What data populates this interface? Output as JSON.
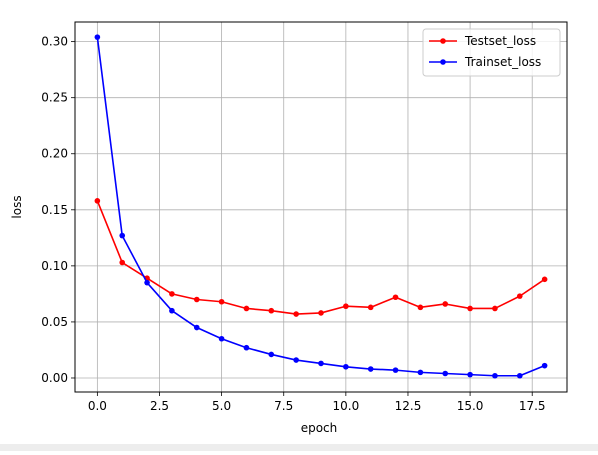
{
  "chart_data": {
    "type": "line",
    "title": "",
    "xlabel": "epoch",
    "ylabel": "loss",
    "xlim": [
      -0.9,
      18.9
    ],
    "ylim": [
      -0.0125,
      0.3175
    ],
    "xticks": [
      0.0,
      2.5,
      5.0,
      7.5,
      10.0,
      12.5,
      15.0,
      17.5
    ],
    "xtick_labels": [
      "0.0",
      "2.5",
      "5.0",
      "7.5",
      "10.0",
      "12.5",
      "15.0",
      "17.5"
    ],
    "yticks": [
      0.0,
      0.05,
      0.1,
      0.15,
      0.2,
      0.25,
      0.3
    ],
    "ytick_labels": [
      "0.00",
      "0.05",
      "0.10",
      "0.15",
      "0.20",
      "0.25",
      "0.30"
    ],
    "grid": true,
    "legend_position": "top-right",
    "x": [
      0,
      1,
      2,
      3,
      4,
      5,
      6,
      7,
      8,
      9,
      10,
      11,
      12,
      13,
      14,
      15,
      16,
      17,
      18
    ],
    "series": [
      {
        "name": "Testset_loss",
        "color": "#ff0000",
        "marker": "dot",
        "values": [
          0.158,
          0.103,
          0.089,
          0.075,
          0.07,
          0.068,
          0.062,
          0.06,
          0.057,
          0.058,
          0.064,
          0.063,
          0.072,
          0.063,
          0.066,
          0.062,
          0.062,
          0.073,
          0.088
        ]
      },
      {
        "name": "Trainset_loss",
        "color": "#0000ff",
        "marker": "dot",
        "values": [
          0.304,
          0.127,
          0.085,
          0.06,
          0.045,
          0.035,
          0.027,
          0.021,
          0.016,
          0.013,
          0.01,
          0.008,
          0.007,
          0.005,
          0.004,
          0.003,
          0.002,
          0.002,
          0.011
        ]
      }
    ]
  }
}
